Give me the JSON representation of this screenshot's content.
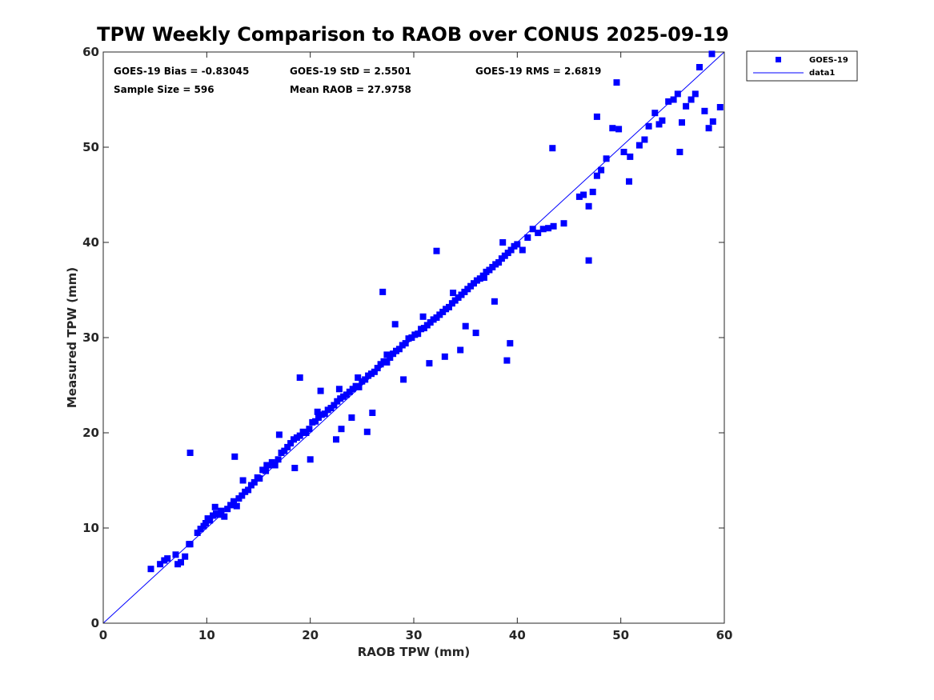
{
  "chart_data": {
    "type": "scatter",
    "title": "TPW Weekly Comparison to RAOB over CONUS 2025-09-19",
    "xlabel": "RAOB TPW (mm)",
    "ylabel": "Measured TPW (mm)",
    "xlim": [
      0,
      60
    ],
    "ylim": [
      0,
      60
    ],
    "xticks": [
      "0",
      "10",
      "20",
      "30",
      "40",
      "50",
      "60"
    ],
    "yticks": [
      "0",
      "10",
      "20",
      "30",
      "40",
      "50",
      "60"
    ],
    "grid": false,
    "legend_position": "outside-top-right",
    "legend": [
      {
        "label": "GOES-19",
        "marker": "square",
        "color": "#0000ff"
      },
      {
        "label": "data1",
        "marker": "line",
        "color": "#0000ff"
      }
    ],
    "annotations": [
      {
        "id": "bias",
        "text": "GOES-19 Bias = -0.83045"
      },
      {
        "id": "std",
        "text": "GOES-19 StD = 2.5501"
      },
      {
        "id": "rms",
        "text": "GOES-19 RMS = 2.6819"
      },
      {
        "id": "n",
        "text": "Sample Size = 596"
      },
      {
        "id": "mean",
        "text": "Mean RAOB = 27.9758"
      }
    ],
    "series": [
      {
        "name": "GOES-19",
        "color": "#0000ff",
        "marker": "square",
        "x": [
          4.6,
          5.5,
          5.9,
          6.2,
          7.0,
          7.2,
          7.5,
          7.9,
          8.3,
          8.4,
          9.1,
          9.4,
          9.7,
          9.9,
          10.1,
          10.3,
          10.6,
          10.9,
          11.1,
          11.4,
          11.7,
          12.0,
          12.3,
          12.6,
          12.9,
          13.1,
          13.4,
          13.7,
          14.0,
          14.3,
          14.6,
          14.9,
          15.1,
          15.4,
          15.7,
          16.0,
          16.3,
          16.6,
          16.9,
          17.2,
          17.5,
          17.8,
          18.1,
          18.4,
          18.7,
          19.0,
          19.3,
          19.6,
          19.9,
          20.2,
          20.5,
          20.8,
          21.1,
          21.4,
          21.7,
          22.0,
          22.3,
          22.6,
          22.9,
          23.2,
          23.5,
          23.8,
          24.1,
          24.4,
          24.7,
          25.0,
          25.3,
          25.6,
          25.9,
          26.2,
          26.5,
          26.8,
          27.1,
          27.4,
          27.7,
          28.0,
          28.3,
          28.6,
          28.9,
          29.2,
          29.5,
          29.8,
          30.1,
          30.4,
          30.7,
          31.0,
          31.3,
          31.6,
          31.9,
          32.2,
          32.5,
          32.8,
          33.1,
          33.4,
          33.7,
          34.0,
          34.3,
          34.6,
          34.9,
          35.2,
          35.5,
          35.8,
          36.1,
          36.4,
          36.7,
          37.0,
          37.3,
          37.6,
          37.9,
          38.2,
          38.5,
          38.8,
          39.1,
          39.4,
          39.7,
          40.0,
          40.5,
          41.0,
          41.5,
          42.0,
          42.5,
          43.0,
          43.5,
          44.5,
          46.0,
          46.4,
          46.9,
          47.3,
          47.7,
          48.1,
          48.6,
          49.2,
          49.8,
          50.3,
          50.9,
          51.8,
          52.3,
          52.7,
          53.3,
          53.7,
          54.0,
          54.6,
          55.1,
          55.5,
          55.9,
          56.3,
          56.8,
          57.2,
          57.6,
          58.1,
          58.5,
          58.9,
          59.6,
          8.4,
          12.7,
          19.0,
          27.0,
          27.4,
          32.2,
          39.3,
          39.0,
          37.8,
          43.4,
          46.9,
          47.7,
          50.8,
          49.6,
          55.7,
          58.8,
          21.0,
          22.5,
          24.0,
          25.5,
          31.5,
          33.0,
          34.5,
          36.0,
          18.5,
          20.0,
          23.0,
          26.0,
          29.0,
          35.0,
          10.8,
          13.5,
          15.8,
          17.0,
          20.7,
          22.8,
          24.6,
          28.2,
          30.9,
          33.8,
          36.8,
          38.6
        ],
        "y": [
          5.7,
          6.2,
          6.6,
          6.8,
          7.2,
          6.2,
          6.4,
          7.0,
          8.3,
          8.3,
          9.5,
          9.9,
          10.2,
          10.5,
          11.0,
          10.8,
          11.3,
          11.5,
          11.4,
          11.8,
          11.2,
          12.0,
          12.4,
          12.8,
          12.3,
          13.1,
          13.4,
          13.8,
          14.0,
          14.5,
          14.8,
          15.3,
          15.2,
          16.1,
          16.0,
          16.6,
          16.9,
          16.6,
          17.2,
          17.9,
          18.1,
          18.5,
          18.9,
          19.3,
          19.5,
          19.7,
          20.1,
          20.0,
          20.4,
          21.1,
          21.2,
          21.6,
          21.9,
          22.0,
          22.4,
          22.6,
          22.9,
          23.3,
          23.6,
          23.8,
          24.0,
          24.3,
          24.6,
          24.9,
          24.8,
          25.4,
          25.6,
          26.0,
          26.2,
          26.4,
          26.8,
          27.2,
          27.5,
          27.4,
          27.9,
          28.3,
          28.6,
          28.8,
          29.2,
          29.4,
          29.9,
          30.0,
          30.3,
          30.4,
          30.9,
          31.0,
          31.3,
          31.6,
          31.9,
          32.1,
          32.4,
          32.7,
          33.0,
          33.2,
          33.6,
          33.9,
          34.2,
          34.5,
          34.8,
          35.1,
          35.4,
          35.7,
          36.0,
          36.2,
          36.5,
          36.9,
          37.1,
          37.4,
          37.7,
          37.9,
          38.3,
          38.6,
          38.9,
          39.2,
          39.6,
          39.8,
          39.2,
          40.5,
          41.4,
          41.0,
          41.4,
          41.5,
          41.7,
          42.0,
          44.8,
          45.0,
          43.8,
          45.3,
          47.0,
          47.6,
          48.8,
          52.0,
          51.9,
          49.5,
          49.0,
          50.2,
          50.8,
          52.2,
          53.6,
          52.4,
          52.8,
          54.8,
          55.0,
          55.6,
          52.6,
          54.3,
          55.0,
          55.6,
          58.4,
          53.8,
          52.0,
          52.7,
          54.2,
          17.9,
          17.5,
          25.8,
          34.8,
          28.2,
          39.1,
          29.4,
          27.6,
          33.8,
          49.9,
          38.1,
          53.2,
          46.4,
          56.8,
          49.5,
          59.8,
          24.4,
          19.3,
          21.6,
          20.1,
          27.3,
          28.0,
          28.7,
          30.5,
          16.3,
          17.2,
          20.4,
          22.1,
          25.6,
          31.2,
          12.2,
          15.0,
          16.6,
          19.8,
          22.2,
          24.6,
          25.8,
          31.4,
          32.2,
          34.7,
          36.3,
          40.0
        ]
      },
      {
        "name": "data1",
        "color": "#0000ff",
        "marker": "line",
        "x": [
          0,
          60
        ],
        "y": [
          0,
          60
        ]
      }
    ]
  }
}
